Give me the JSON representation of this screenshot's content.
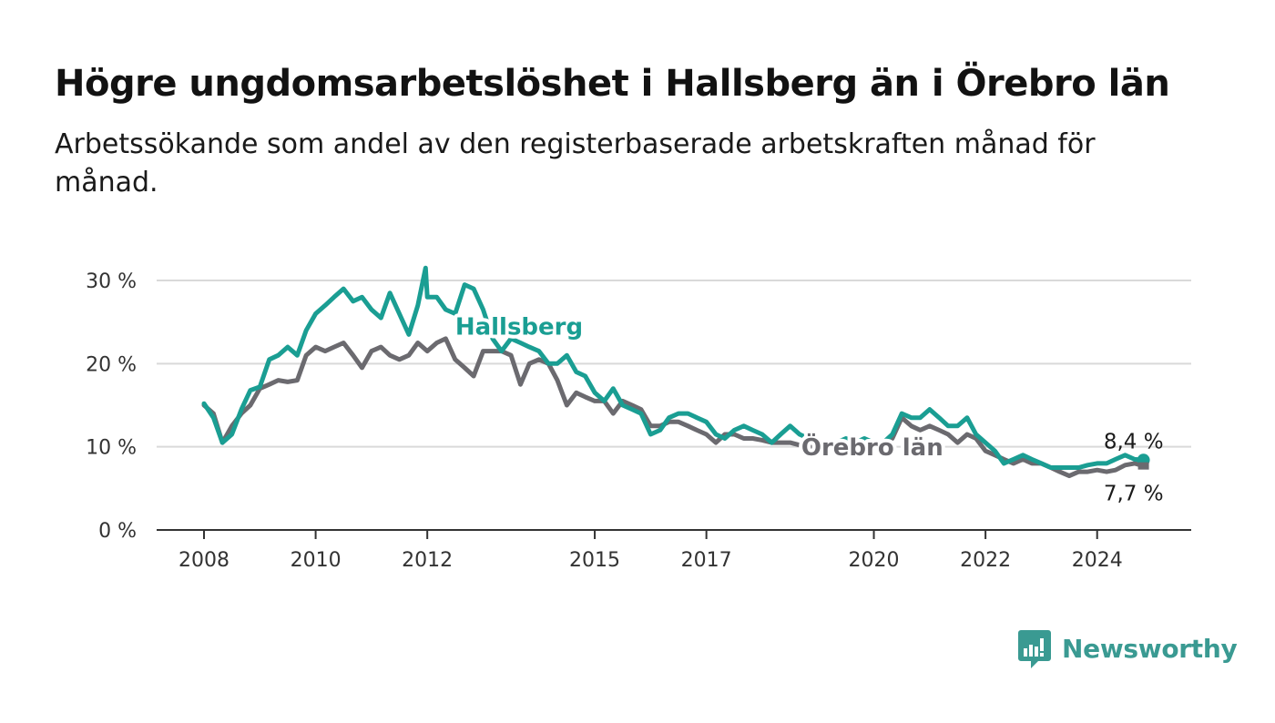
{
  "title": "Högre ungdomsarbetslöshet i Hallsberg än i Örebro län",
  "subtitle": "Arbetssökande som andel av den registerbaserade arbetskraften månad för månad.",
  "brand": {
    "name": "Newsworthy"
  },
  "chart_data": {
    "type": "line",
    "title": "Högre ungdomsarbetslöshet i Hallsberg än i Örebro län",
    "subtitle": "Arbetssökande som andel av den registerbaserade arbetskraften månad för månad.",
    "xlabel": "",
    "ylabel": "",
    "ylim": [
      0,
      30
    ],
    "yticks": [
      0,
      10,
      20,
      30
    ],
    "ytick_labels": [
      "0 %",
      "10 %",
      "20 %",
      "30 %"
    ],
    "xlim": [
      2008.0,
      2025.0
    ],
    "xticks": [
      2008,
      2010,
      2012,
      2015,
      2017,
      2020,
      2022,
      2024
    ],
    "xtick_labels": [
      "2008",
      "2010",
      "2012",
      "2015",
      "2017",
      "2020",
      "2022",
      "2024"
    ],
    "grid": true,
    "legend": "inline labels",
    "colors": {
      "Hallsberg": "#1a9e93",
      "Örebro län": "#6b6a6f",
      "grid": "#d9d9d9",
      "axis": "#333333"
    },
    "series": [
      {
        "name": "Hallsberg",
        "label_at": [
          2012.5,
          23.5
        ],
        "end_label": "8,4 %",
        "points": [
          [
            2008.0,
            15.2
          ],
          [
            2008.17,
            13.5
          ],
          [
            2008.33,
            10.5
          ],
          [
            2008.5,
            11.5
          ],
          [
            2008.67,
            14.5
          ],
          [
            2008.83,
            16.8
          ],
          [
            2009.0,
            17.2
          ],
          [
            2009.17,
            20.5
          ],
          [
            2009.33,
            21.0
          ],
          [
            2009.5,
            22.0
          ],
          [
            2009.67,
            21.0
          ],
          [
            2009.83,
            24.0
          ],
          [
            2010.0,
            26.0
          ],
          [
            2010.17,
            27.0
          ],
          [
            2010.33,
            28.0
          ],
          [
            2010.5,
            29.0
          ],
          [
            2010.67,
            27.5
          ],
          [
            2010.83,
            28.0
          ],
          [
            2011.0,
            26.5
          ],
          [
            2011.17,
            25.5
          ],
          [
            2011.33,
            28.5
          ],
          [
            2011.5,
            26.0
          ],
          [
            2011.67,
            23.5
          ],
          [
            2011.83,
            27.0
          ],
          [
            2012.0,
            28.0
          ],
          [
            2011.97,
            31.5
          ],
          [
            2012.17,
            28.0
          ],
          [
            2012.33,
            26.5
          ],
          [
            2012.5,
            26.0
          ],
          [
            2012.67,
            29.5
          ],
          [
            2012.83,
            29.0
          ],
          [
            2013.0,
            26.5
          ],
          [
            2013.17,
            23.0
          ],
          [
            2013.33,
            21.5
          ],
          [
            2013.5,
            23.0
          ],
          [
            2013.67,
            22.5
          ],
          [
            2013.83,
            22.0
          ],
          [
            2014.0,
            21.5
          ],
          [
            2014.17,
            20.0
          ],
          [
            2014.33,
            20.0
          ],
          [
            2014.5,
            21.0
          ],
          [
            2014.67,
            19.0
          ],
          [
            2014.83,
            18.5
          ],
          [
            2015.0,
            16.5
          ],
          [
            2015.17,
            15.5
          ],
          [
            2015.33,
            17.0
          ],
          [
            2015.5,
            15.0
          ],
          [
            2015.67,
            14.5
          ],
          [
            2015.83,
            14.0
          ],
          [
            2016.0,
            11.5
          ],
          [
            2016.17,
            12.0
          ],
          [
            2016.33,
            13.5
          ],
          [
            2016.5,
            14.0
          ],
          [
            2016.67,
            14.0
          ],
          [
            2016.83,
            13.5
          ],
          [
            2017.0,
            13.0
          ],
          [
            2017.17,
            11.5
          ],
          [
            2017.33,
            11.0
          ],
          [
            2017.5,
            12.0
          ],
          [
            2017.67,
            12.5
          ],
          [
            2017.83,
            12.0
          ],
          [
            2018.0,
            11.5
          ],
          [
            2018.17,
            10.5
          ],
          [
            2018.33,
            11.5
          ],
          [
            2018.5,
            12.5
          ],
          [
            2018.67,
            11.5
          ],
          [
            2018.83,
            11.0
          ],
          [
            2019.0,
            10.5
          ],
          [
            2019.17,
            10.0
          ],
          [
            2019.33,
            10.5
          ],
          [
            2019.5,
            11.0
          ],
          [
            2019.67,
            10.5
          ],
          [
            2019.83,
            11.0
          ],
          [
            2020.0,
            10.5
          ],
          [
            2020.17,
            10.5
          ],
          [
            2020.33,
            11.5
          ],
          [
            2020.5,
            14.0
          ],
          [
            2020.67,
            13.5
          ],
          [
            2020.83,
            13.5
          ],
          [
            2021.0,
            14.5
          ],
          [
            2021.17,
            13.5
          ],
          [
            2021.33,
            12.5
          ],
          [
            2021.5,
            12.5
          ],
          [
            2021.67,
            13.5
          ],
          [
            2021.83,
            11.5
          ],
          [
            2022.0,
            10.5
          ],
          [
            2022.17,
            9.5
          ],
          [
            2022.33,
            8.0
          ],
          [
            2022.5,
            8.5
          ],
          [
            2022.67,
            9.0
          ],
          [
            2022.83,
            8.5
          ],
          [
            2023.0,
            8.0
          ],
          [
            2023.17,
            7.5
          ],
          [
            2023.33,
            7.5
          ],
          [
            2023.5,
            7.5
          ],
          [
            2023.67,
            7.5
          ],
          [
            2023.83,
            7.8
          ],
          [
            2024.0,
            8.0
          ],
          [
            2024.17,
            8.0
          ],
          [
            2024.33,
            8.5
          ],
          [
            2024.5,
            9.0
          ],
          [
            2024.67,
            8.5
          ],
          [
            2024.83,
            8.4
          ]
        ]
      },
      {
        "name": "Örebro län",
        "label_at": [
          2018.7,
          9.0
        ],
        "end_label": "7,7 %",
        "points": [
          [
            2008.0,
            15.0
          ],
          [
            2008.17,
            14.0
          ],
          [
            2008.33,
            10.5
          ],
          [
            2008.5,
            12.5
          ],
          [
            2008.67,
            14.0
          ],
          [
            2008.83,
            15.0
          ],
          [
            2009.0,
            17.0
          ],
          [
            2009.17,
            17.5
          ],
          [
            2009.33,
            18.0
          ],
          [
            2009.5,
            17.8
          ],
          [
            2009.67,
            18.0
          ],
          [
            2009.83,
            21.0
          ],
          [
            2010.0,
            22.0
          ],
          [
            2010.17,
            21.5
          ],
          [
            2010.33,
            22.0
          ],
          [
            2010.5,
            22.5
          ],
          [
            2010.67,
            21.0
          ],
          [
            2010.83,
            19.5
          ],
          [
            2011.0,
            21.5
          ],
          [
            2011.17,
            22.0
          ],
          [
            2011.33,
            21.0
          ],
          [
            2011.5,
            20.5
          ],
          [
            2011.67,
            21.0
          ],
          [
            2011.83,
            22.5
          ],
          [
            2012.0,
            21.5
          ],
          [
            2012.17,
            22.5
          ],
          [
            2012.33,
            23.0
          ],
          [
            2012.5,
            20.5
          ],
          [
            2012.67,
            19.5
          ],
          [
            2012.83,
            18.5
          ],
          [
            2013.0,
            21.5
          ],
          [
            2013.17,
            21.5
          ],
          [
            2013.33,
            21.5
          ],
          [
            2013.5,
            21.0
          ],
          [
            2013.67,
            17.5
          ],
          [
            2013.83,
            20.0
          ],
          [
            2014.0,
            20.5
          ],
          [
            2014.17,
            20.0
          ],
          [
            2014.33,
            18.0
          ],
          [
            2014.5,
            15.0
          ],
          [
            2014.67,
            16.5
          ],
          [
            2014.83,
            16.0
          ],
          [
            2015.0,
            15.5
          ],
          [
            2015.17,
            15.5
          ],
          [
            2015.33,
            14.0
          ],
          [
            2015.5,
            15.5
          ],
          [
            2015.67,
            15.0
          ],
          [
            2015.83,
            14.5
          ],
          [
            2016.0,
            12.5
          ],
          [
            2016.17,
            12.5
          ],
          [
            2016.33,
            13.0
          ],
          [
            2016.5,
            13.0
          ],
          [
            2016.67,
            12.5
          ],
          [
            2016.83,
            12.0
          ],
          [
            2017.0,
            11.5
          ],
          [
            2017.17,
            10.5
          ],
          [
            2017.33,
            11.5
          ],
          [
            2017.5,
            11.5
          ],
          [
            2017.67,
            11.0
          ],
          [
            2017.83,
            11.0
          ],
          [
            2018.0,
            10.8
          ],
          [
            2018.17,
            10.5
          ],
          [
            2018.33,
            10.5
          ],
          [
            2018.5,
            10.5
          ],
          [
            2018.67,
            10.2
          ],
          [
            2018.83,
            10.0
          ],
          [
            2019.0,
            10.0
          ],
          [
            2019.17,
            10.0
          ],
          [
            2019.33,
            10.2
          ],
          [
            2019.5,
            10.3
          ],
          [
            2019.67,
            10.5
          ],
          [
            2019.83,
            10.8
          ],
          [
            2020.0,
            10.5
          ],
          [
            2020.17,
            10.5
          ],
          [
            2020.33,
            11.0
          ],
          [
            2020.5,
            13.5
          ],
          [
            2020.67,
            12.5
          ],
          [
            2020.83,
            12.0
          ],
          [
            2021.0,
            12.5
          ],
          [
            2021.17,
            12.0
          ],
          [
            2021.33,
            11.5
          ],
          [
            2021.5,
            10.5
          ],
          [
            2021.67,
            11.5
          ],
          [
            2021.83,
            11.0
          ],
          [
            2022.0,
            9.5
          ],
          [
            2022.17,
            9.0
          ],
          [
            2022.33,
            8.5
          ],
          [
            2022.5,
            8.0
          ],
          [
            2022.67,
            8.5
          ],
          [
            2022.83,
            8.0
          ],
          [
            2023.0,
            8.0
          ],
          [
            2023.17,
            7.5
          ],
          [
            2023.33,
            7.0
          ],
          [
            2023.5,
            6.5
          ],
          [
            2023.67,
            7.0
          ],
          [
            2023.83,
            7.0
          ],
          [
            2024.0,
            7.2
          ],
          [
            2024.17,
            7.0
          ],
          [
            2024.33,
            7.2
          ],
          [
            2024.5,
            7.8
          ],
          [
            2024.67,
            8.0
          ],
          [
            2024.83,
            7.7
          ]
        ]
      }
    ]
  }
}
